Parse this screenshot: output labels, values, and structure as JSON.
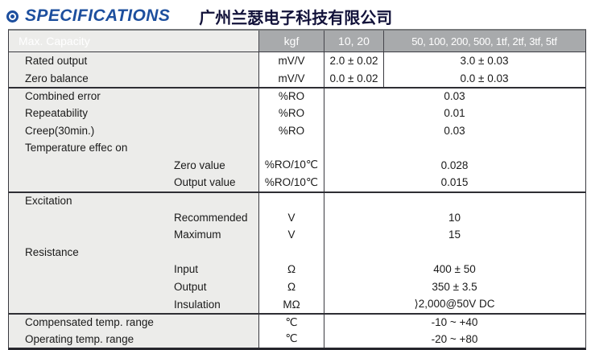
{
  "header": {
    "icon": "bullseye-icon",
    "title": "SPECIFICATIONS",
    "company": "广州兰瑟电子科技有限公司"
  },
  "colors": {
    "accent_blue": "#1d4f9e",
    "table_header_bg": "#a8aaac",
    "table_header_text": "#ffffff",
    "label_column_bg": "#ececea",
    "border_dark": "#3a3a40"
  },
  "table": {
    "header": {
      "col1": "Max. Capacity",
      "col2": "kgf",
      "col3": "10, 20",
      "col4": "50, 100, 200, 500, 1tf, 2tf, 3tf, 5tf"
    },
    "rows": [
      {
        "label": "Rated output",
        "unit": "mV/V",
        "value1": "2.0 ± 0.02",
        "value2": "3.0 ± 0.03"
      },
      {
        "label": "Zero balance",
        "unit": "mV/V",
        "value1": "0.0 ± 0.02",
        "value2": "0.0 ± 0.03"
      },
      {
        "label": "Combined error",
        "unit": "%RO",
        "value": "0.03"
      },
      {
        "label": "Repeatability",
        "unit": "%RO",
        "value": "0.01"
      },
      {
        "label": "Creep(30min.)",
        "unit": "%RO",
        "value": "0.03"
      },
      {
        "label": "Temperature effec on",
        "unit": "",
        "value": ""
      },
      {
        "label": "Zero value",
        "unit": "%RO/10℃",
        "value": "0.028"
      },
      {
        "label": "Output value",
        "unit": "%RO/10℃",
        "value": "0.015"
      },
      {
        "label": "Excitation",
        "unit": "",
        "value": ""
      },
      {
        "label": "Recommended",
        "unit": "V",
        "value": "10"
      },
      {
        "label": "Maximum",
        "unit": "V",
        "value": "15"
      },
      {
        "label": "Resistance",
        "unit": "",
        "value": ""
      },
      {
        "label": "Input",
        "unit": "Ω",
        "value": "400 ± 50"
      },
      {
        "label": "Output",
        "unit": "Ω",
        "value": "350 ± 3.5"
      },
      {
        "label": "Insulation",
        "unit": "MΩ",
        "value": "⟩2,000@50V DC"
      },
      {
        "label": "Compensated temp. range",
        "unit": "℃",
        "value": "-10 ~ +40"
      },
      {
        "label": "Operating temp. range",
        "unit": "℃",
        "value": "-20 ~ +80"
      }
    ]
  }
}
